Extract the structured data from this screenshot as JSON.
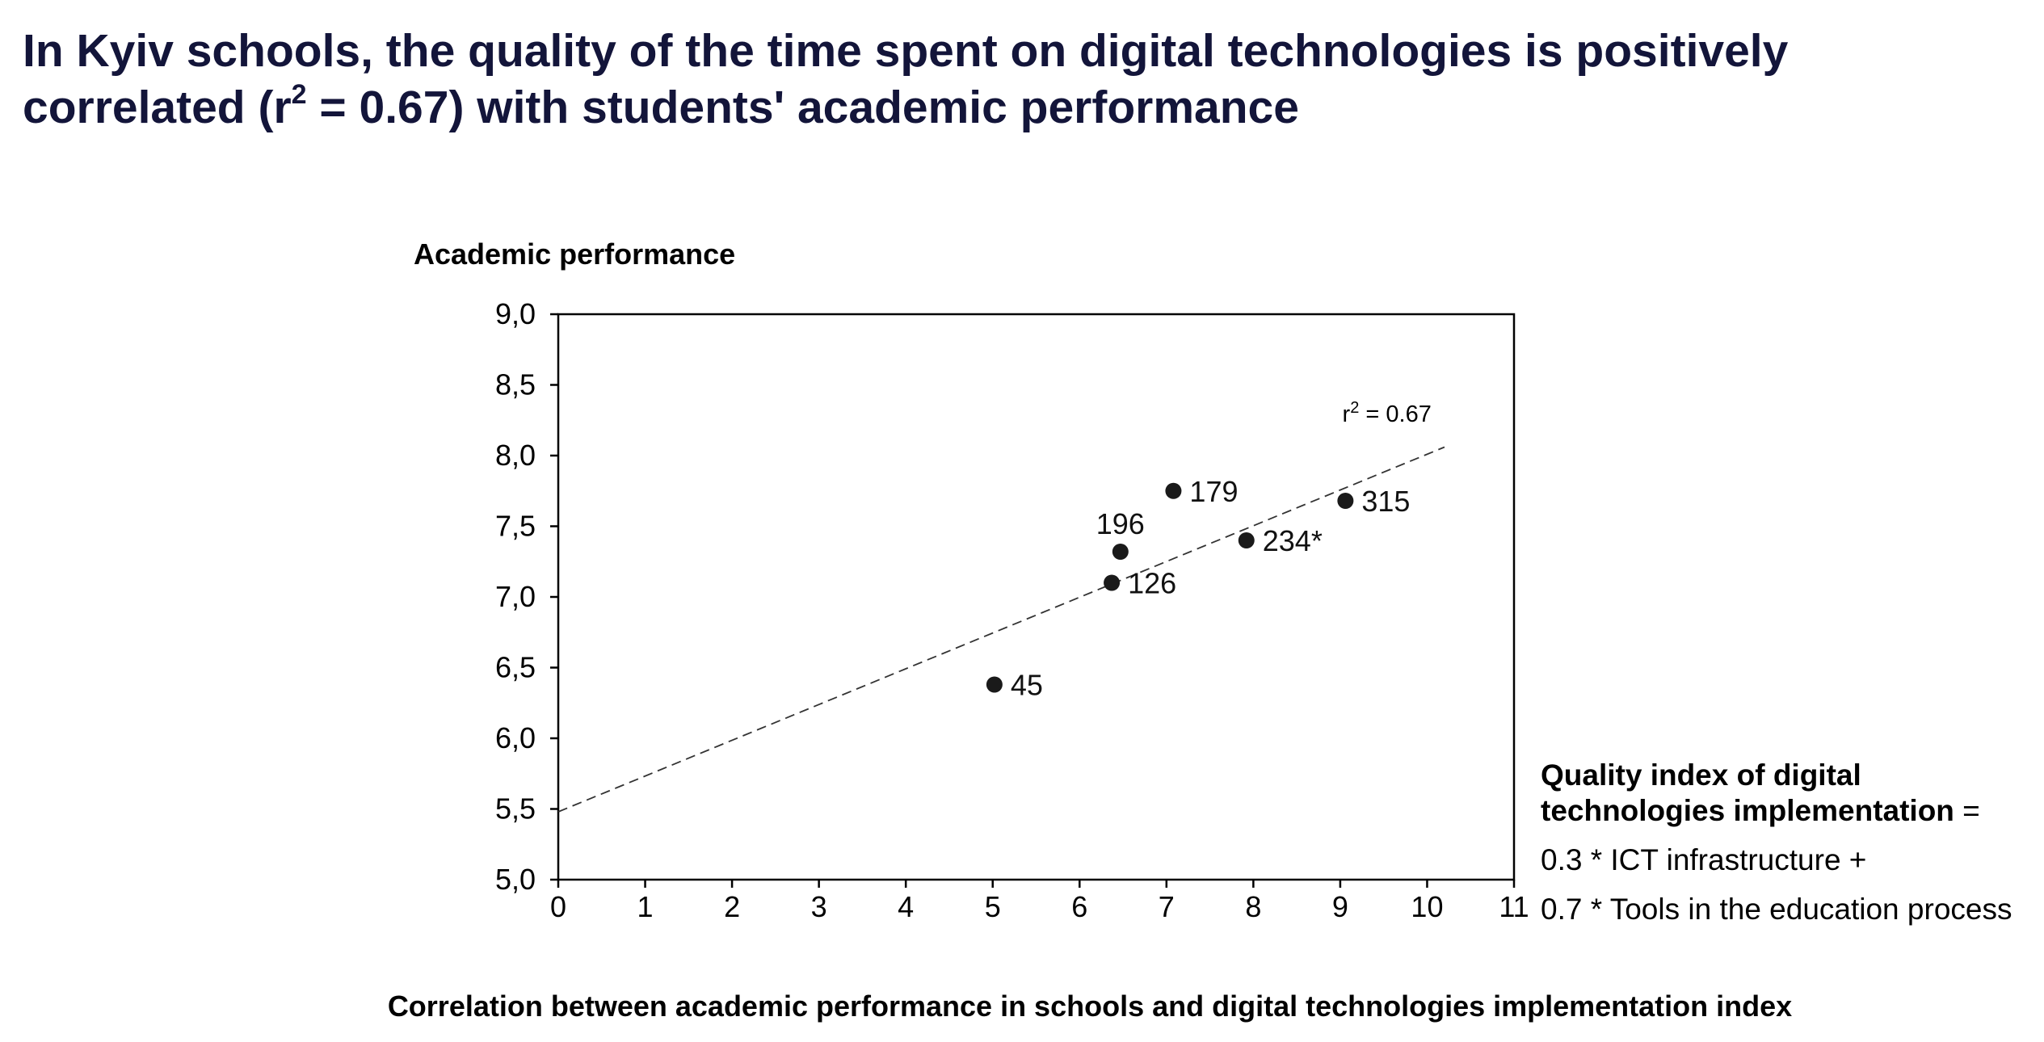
{
  "headline": {
    "part1": "In Kyiv schools, the quality of the time spent on digital technologies is positively correlated (r",
    "sup": "2",
    "part2": " = 0.67) with students' academic performance"
  },
  "formula": {
    "line1": "Quality index of digital",
    "line2_bold": "technologies implementation",
    "line2_rest": " =",
    "line3": "0.3 * ICT infrastructure +",
    "line4": "0.7 * Tools in the education process"
  },
  "chart_data": {
    "type": "scatter",
    "title": "Correlation between academic performance in schools and digital technologies implementation index",
    "xlabel": "",
    "ylabel": "Academic performance",
    "xlim": [
      0,
      11
    ],
    "ylim": [
      5.0,
      9.0
    ],
    "x_ticks": [
      "0",
      "1",
      "2",
      "3",
      "4",
      "5",
      "6",
      "7",
      "8",
      "9",
      "10",
      "11"
    ],
    "y_ticks": [
      "5,0",
      "5,5",
      "6,0",
      "6,5",
      "7,0",
      "7,5",
      "8,0",
      "8,5",
      "9,0"
    ],
    "grid": false,
    "points": [
      {
        "label": "45",
        "x": 5.02,
        "y": 6.38
      },
      {
        "label": "126",
        "x": 6.37,
        "y": 7.1
      },
      {
        "label": "196",
        "x": 6.47,
        "y": 7.32
      },
      {
        "label": "179",
        "x": 7.08,
        "y": 7.75
      },
      {
        "label": "234*",
        "x": 7.92,
        "y": 7.4
      },
      {
        "label": "315",
        "x": 9.06,
        "y": 7.68
      }
    ],
    "trendline": {
      "style": "dashed",
      "x": [
        0,
        10.2
      ],
      "y": [
        5.48,
        8.06
      ],
      "label": "r",
      "label_sup": "2",
      "label_rest": " = 0.67"
    },
    "marker_color": "#1a1a1a",
    "axis_color": "#000000"
  }
}
